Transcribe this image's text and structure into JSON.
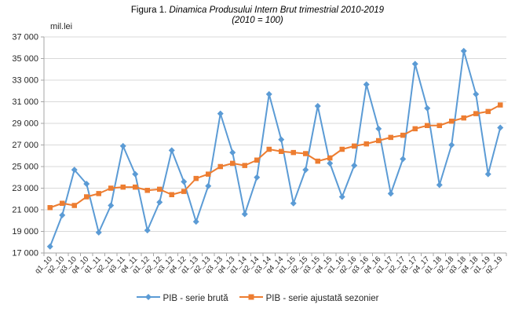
{
  "figure": {
    "title_prefix": "Figura 1.",
    "title_main": " Dinamica Produsului Intern Brut trimestrial 2010-2019",
    "subtitle": "(2010 = 100)",
    "unit_label": "mil.lei"
  },
  "colors": {
    "series_bruta": "#5B9BD5",
    "series_ajustata": "#ED7D31",
    "gridline": "#D9D9D9",
    "axis": "#A6A6A6",
    "tick_text": "#262626"
  },
  "legend": {
    "items": [
      "PIB - serie brută",
      "PIB - serie ajustată sezonier"
    ]
  },
  "chart_data": {
    "type": "line",
    "title": "Figura 1. Dinamica Produsului Intern Brut trimestrial 2010-2019",
    "subtitle": "(2010 = 100)",
    "ylabel": "mil.lei",
    "xlabel": "",
    "grid": true,
    "legend_position": "bottom",
    "ylim": [
      17000,
      37000
    ],
    "ytick_step": 2000,
    "categories": [
      "q1_10",
      "q2_10",
      "q3_10",
      "q4_10",
      "q1_11",
      "q2_11",
      "q3_11",
      "q4_11",
      "q1_12",
      "q2_12",
      "q3_12",
      "q4_12",
      "q1_13",
      "q2_13",
      "q3_13",
      "q4_13",
      "q1_14",
      "q2_14",
      "q3_14",
      "q4_14",
      "q1_15",
      "q2_15",
      "q3_15",
      "q4_15",
      "q1_16",
      "q2_16",
      "q3_16",
      "q4_16",
      "q1_17",
      "q2_17",
      "q3_17",
      "q4_17",
      "q1_18",
      "q2_18",
      "q3_18",
      "q4_18",
      "q1_19",
      "q2_19"
    ],
    "series": [
      {
        "name": "PIB - serie brută",
        "marker": "diamond",
        "color": "#5B9BD5",
        "values": [
          17600,
          20500,
          24700,
          23400,
          18900,
          21400,
          26900,
          24300,
          19100,
          21700,
          26500,
          23600,
          19900,
          23200,
          29900,
          26300,
          20600,
          24000,
          31700,
          27500,
          21600,
          24700,
          30600,
          25300,
          22200,
          25100,
          32600,
          28500,
          22500,
          25700,
          34500,
          30400,
          23300,
          27000,
          35700,
          31700,
          24300,
          28600
        ]
      },
      {
        "name": "PIB - serie ajustată sezonier",
        "marker": "square",
        "color": "#ED7D31",
        "values": [
          21200,
          21600,
          21400,
          22200,
          22500,
          23000,
          23100,
          23100,
          22800,
          22900,
          22400,
          22700,
          23900,
          24300,
          25000,
          25300,
          25100,
          25600,
          26600,
          26400,
          26300,
          26200,
          25500,
          25800,
          26600,
          26900,
          27100,
          27400,
          27700,
          27900,
          28500,
          28800,
          28800,
          29200,
          29500,
          29900,
          30100,
          30700
        ]
      }
    ]
  }
}
